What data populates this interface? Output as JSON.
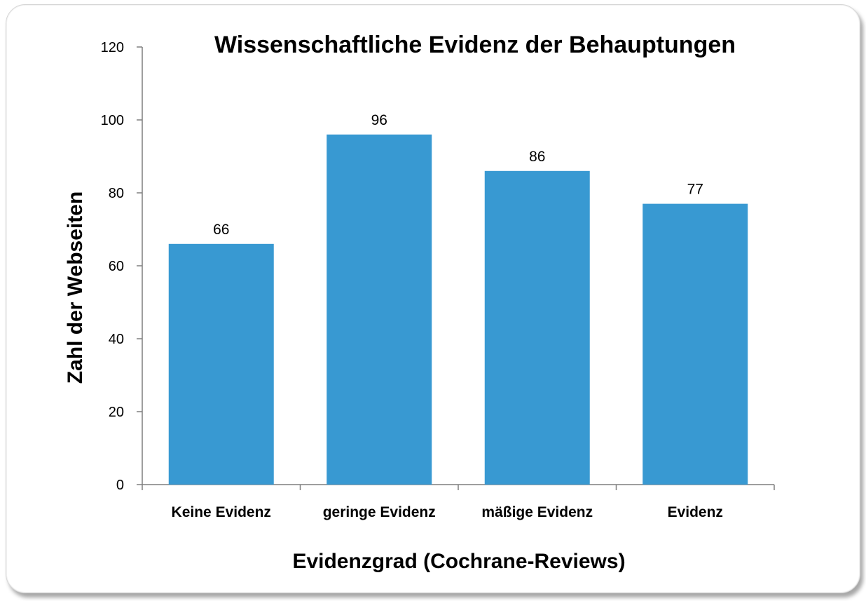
{
  "chart_data": {
    "type": "bar",
    "title": "Wissenschaftliche Evidenz der Behauptungen",
    "xlabel": "Evidenzgrad (Cochrane-Reviews)",
    "ylabel": "Zahl der Webseiten",
    "categories": [
      "Keine Evidenz",
      "geringe Evidenz",
      "mäßige Evidenz",
      "Evidenz"
    ],
    "values": [
      66,
      96,
      86,
      77
    ],
    "data_labels": [
      "66",
      "96",
      "86",
      "77"
    ],
    "ylim": [
      0,
      120
    ],
    "yticks": [
      "0",
      "20",
      "40",
      "60",
      "80",
      "100",
      "120"
    ],
    "grid": false,
    "legend": "none",
    "bar_color": "#3899d2"
  }
}
